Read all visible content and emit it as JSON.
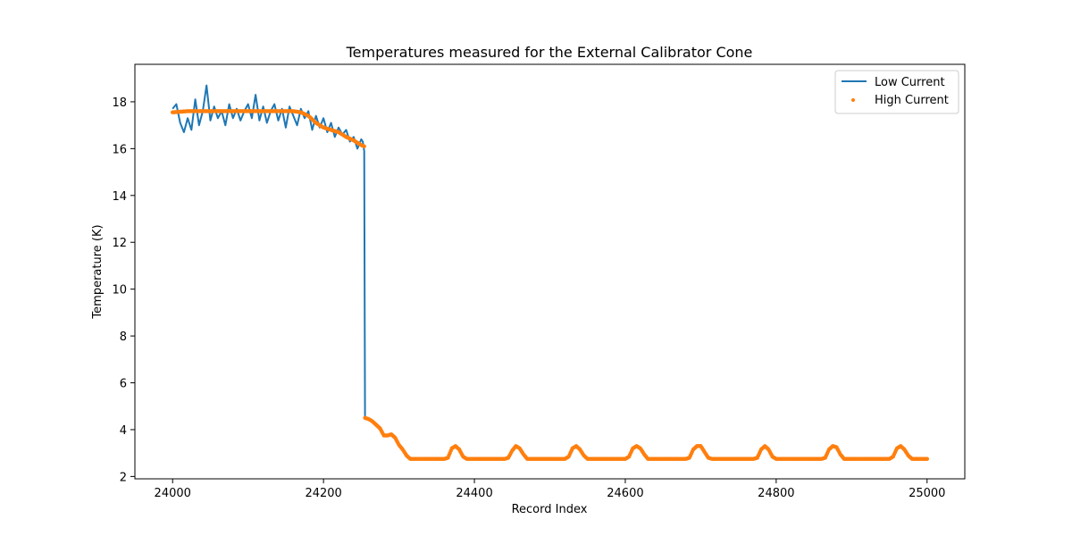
{
  "chart_data": {
    "type": "line",
    "title": "Temperatures measured for the External Calibrator Cone",
    "xlabel": "Record Index",
    "ylabel": "Temperature (K)",
    "xlim": [
      23950,
      25050
    ],
    "ylim": [
      1.9,
      19.6
    ],
    "xticks": [
      24000,
      24200,
      24400,
      24600,
      24800,
      25000
    ],
    "yticks": [
      2,
      4,
      6,
      8,
      10,
      12,
      14,
      16,
      18
    ],
    "grid": false,
    "legend_position": "top-right",
    "series": [
      {
        "name": "Low Current",
        "style": "line",
        "color": "#1f77b4",
        "x": [
          24000,
          24005,
          24010,
          24015,
          24020,
          24025,
          24030,
          24035,
          24040,
          24045,
          24050,
          24055,
          24060,
          24065,
          24070,
          24075,
          24080,
          24085,
          24090,
          24095,
          24100,
          24105,
          24110,
          24115,
          24120,
          24125,
          24130,
          24135,
          24140,
          24145,
          24150,
          24155,
          24160,
          24165,
          24170,
          24175,
          24180,
          24185,
          24190,
          24195,
          24200,
          24205,
          24210,
          24215,
          24220,
          24225,
          24230,
          24235,
          24240,
          24245,
          24250,
          24252,
          24254,
          24255
        ],
        "y": [
          17.7,
          17.9,
          17.1,
          16.7,
          17.3,
          16.8,
          18.1,
          17.0,
          17.6,
          18.7,
          17.2,
          17.8,
          17.3,
          17.6,
          17.0,
          17.9,
          17.3,
          17.7,
          17.2,
          17.6,
          17.9,
          17.3,
          18.3,
          17.2,
          17.8,
          17.1,
          17.6,
          17.9,
          17.2,
          17.7,
          16.9,
          17.8,
          17.4,
          17.0,
          17.7,
          17.3,
          17.6,
          16.8,
          17.4,
          16.9,
          17.3,
          16.7,
          17.1,
          16.5,
          16.9,
          16.6,
          16.8,
          16.3,
          16.5,
          16.0,
          16.4,
          16.3,
          15.9,
          4.5
        ],
        "x2": [],
        "y2": []
      },
      {
        "name": "High Current",
        "style": "scatter",
        "color": "#ff7f0e",
        "x": [
          24000,
          24020,
          24040,
          24060,
          24080,
          24100,
          24120,
          24140,
          24160,
          24170,
          24180,
          24190,
          24200,
          24210,
          24220,
          24230,
          24240,
          24250,
          24254,
          24255,
          24260,
          24265,
          24270,
          24275,
          24280,
          24285,
          24290,
          24295,
          24300,
          24305,
          24310,
          24315,
          24320,
          24330,
          24340,
          24350,
          24360,
          24365,
          24370,
          24375,
          24380,
          24385,
          24390,
          24395,
          24400,
          24410,
          24420,
          24430,
          24440,
          24445,
          24450,
          24455,
          24460,
          24465,
          24470,
          24475,
          24480,
          24490,
          24500,
          24510,
          24520,
          24525,
          24530,
          24535,
          24540,
          24545,
          24550,
          24555,
          24560,
          24570,
          24580,
          24590,
          24600,
          24605,
          24610,
          24615,
          24620,
          24625,
          24630,
          24635,
          24640,
          24650,
          24660,
          24670,
          24680,
          24685,
          24690,
          24695,
          24700,
          24705,
          24710,
          24715,
          24720,
          24730,
          24740,
          24750,
          24760,
          24770,
          24775,
          24780,
          24785,
          24790,
          24795,
          24800,
          24810,
          24820,
          24830,
          24840,
          24850,
          24860,
          24865,
          24870,
          24875,
          24880,
          24885,
          24890,
          24895,
          24900,
          24910,
          24920,
          24930,
          24940,
          24950,
          24955,
          24960,
          24965,
          24970,
          24975,
          24980,
          24985,
          24990,
          25000
        ],
        "y": [
          17.55,
          17.6,
          17.6,
          17.6,
          17.6,
          17.6,
          17.6,
          17.6,
          17.6,
          17.55,
          17.4,
          17.1,
          16.9,
          16.8,
          16.7,
          16.5,
          16.35,
          16.15,
          16.1,
          4.5,
          4.45,
          4.35,
          4.2,
          4.05,
          3.75,
          3.75,
          3.8,
          3.65,
          3.35,
          3.15,
          2.9,
          2.75,
          2.75,
          2.75,
          2.75,
          2.75,
          2.75,
          2.8,
          3.2,
          3.3,
          3.15,
          2.85,
          2.75,
          2.75,
          2.75,
          2.75,
          2.75,
          2.75,
          2.75,
          2.8,
          3.1,
          3.3,
          3.2,
          2.95,
          2.75,
          2.75,
          2.75,
          2.75,
          2.75,
          2.75,
          2.75,
          2.85,
          3.2,
          3.3,
          3.15,
          2.9,
          2.75,
          2.75,
          2.75,
          2.75,
          2.75,
          2.75,
          2.75,
          2.85,
          3.2,
          3.3,
          3.2,
          2.95,
          2.75,
          2.75,
          2.75,
          2.75,
          2.75,
          2.75,
          2.75,
          2.8,
          3.15,
          3.3,
          3.3,
          3.05,
          2.8,
          2.75,
          2.75,
          2.75,
          2.75,
          2.75,
          2.75,
          2.75,
          2.8,
          3.15,
          3.3,
          3.15,
          2.85,
          2.75,
          2.75,
          2.75,
          2.75,
          2.75,
          2.75,
          2.75,
          2.8,
          3.15,
          3.3,
          3.25,
          2.95,
          2.75,
          2.75,
          2.75,
          2.75,
          2.75,
          2.75,
          2.75,
          2.75,
          2.85,
          3.2,
          3.3,
          3.15,
          2.9,
          2.75,
          2.75,
          2.75,
          2.75
        ]
      }
    ]
  }
}
